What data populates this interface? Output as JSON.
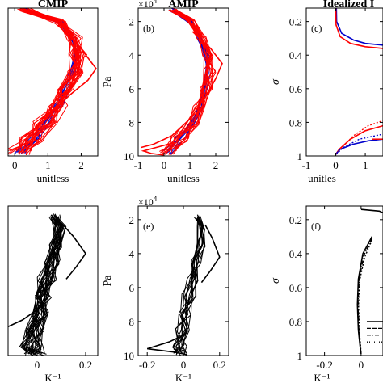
{
  "chart_data": [
    {
      "type": "line",
      "title": "CMIP",
      "panel_label": "",
      "xlabel": "unitless",
      "ylabel": "",
      "xlim": [
        -0.2,
        2.5
      ],
      "ylim": [
        10,
        1.2
      ],
      "y_reversed": true,
      "xticks": [
        0,
        1,
        2
      ],
      "yticks": [],
      "ensembles": [
        {
          "color": "#0000cc",
          "count": 8,
          "seed": 11,
          "profile": {
            "y": [
              1.3,
              2,
              3,
              4,
              5,
              6,
              7,
              8,
              9,
              9.8
            ],
            "x": [
              0.35,
              1.4,
              1.75,
              1.85,
              1.75,
              1.55,
              1.3,
              0.95,
              0.55,
              0.1
            ]
          },
          "jitter": 0.12
        },
        {
          "color": "#ff0000",
          "count": 24,
          "seed": 23,
          "profile": {
            "y": [
              1.3,
              2,
              3,
              4,
              5,
              6,
              7,
              8,
              9,
              9.8
            ],
            "x": [
              0.3,
              1.35,
              1.8,
              1.9,
              1.8,
              1.55,
              1.25,
              0.9,
              0.5,
              0.05
            ]
          },
          "jitter": 0.28
        }
      ],
      "extra_lines": [
        {
          "color": "#ff0000",
          "x": [
            1.3,
            1.95,
            2.45,
            2.2,
            1.7,
            1.1,
            0.5,
            0.05
          ],
          "y": [
            2.2,
            3.5,
            4.8,
            5.5,
            6.3,
            7.4,
            8.6,
            9.7
          ]
        }
      ]
    },
    {
      "type": "line",
      "title": "AMIP",
      "panel_label": "(b)",
      "xlabel": "unitless",
      "ylabel": "Pa",
      "y_exponent": "×10",
      "y_exponent_power": "4",
      "xlim": [
        -1,
        2.5
      ],
      "ylim": [
        10,
        1.2
      ],
      "y_reversed": true,
      "xticks": [
        -1,
        0,
        1,
        2
      ],
      "yticks": [
        2,
        4,
        6,
        8,
        10
      ],
      "ensembles": [
        {
          "color": "#0000cc",
          "count": 8,
          "seed": 31,
          "profile": {
            "y": [
              1.3,
              2,
              3,
              4,
              5,
              6,
              7,
              8,
              9,
              9.8
            ],
            "x": [
              0.3,
              1.0,
              1.4,
              1.6,
              1.7,
              1.6,
              1.45,
              1.1,
              0.6,
              0.1
            ]
          },
          "jitter": 0.12
        },
        {
          "color": "#ff0000",
          "count": 16,
          "seed": 47,
          "profile": {
            "y": [
              1.3,
              2,
              3,
              4,
              5,
              6,
              7,
              8,
              9,
              9.8
            ],
            "x": [
              0.35,
              1.05,
              1.45,
              1.7,
              1.8,
              1.65,
              1.45,
              1.1,
              0.6,
              0.1
            ]
          },
          "jitter": 0.25
        }
      ],
      "extra_lines": [
        {
          "color": "#ff0000",
          "x": [
            1.1,
            1.8,
            2.25,
            2.0,
            1.6,
            1.0,
            0.3,
            -0.4,
            -0.9
          ],
          "y": [
            2.6,
            3.6,
            4.5,
            5.4,
            6.5,
            7.8,
            8.8,
            9.3,
            9.5
          ]
        },
        {
          "color": "#ff0000",
          "x": [
            0.4,
            -0.2,
            -0.8,
            -0.5,
            0.0
          ],
          "y": [
            9.2,
            9.45,
            9.7,
            9.85,
            9.95
          ]
        }
      ]
    },
    {
      "type": "line",
      "title": "Idealized I",
      "panel_label": "(c)",
      "xlabel": "unitles",
      "ylabel": "σ",
      "xlim": [
        -1,
        1.6
      ],
      "ylim": [
        1,
        0.12
      ],
      "y_reversed": true,
      "xticks": [
        -1,
        0,
        1
      ],
      "yticks": [
        0.2,
        0.4,
        0.6,
        0.8,
        1
      ],
      "ensembles": [],
      "extra_lines": [
        {
          "color": "#0000cc",
          "x": [
            0.02,
            0.03,
            0.2,
            0.6,
            1.0,
            1.6
          ],
          "y": [
            0.12,
            0.2,
            0.27,
            0.31,
            0.33,
            0.34
          ]
        },
        {
          "color": "#ff0000",
          "x": [
            0.0,
            0.01,
            0.15,
            0.5,
            1.0,
            1.6
          ],
          "y": [
            0.12,
            0.22,
            0.29,
            0.33,
            0.35,
            0.36
          ]
        },
        {
          "color": "#ff0000",
          "x": [
            0.0,
            0.12,
            0.5,
            1.0,
            1.6
          ],
          "y": [
            0.99,
            0.96,
            0.9,
            0.85,
            0.82
          ]
        },
        {
          "color": "#0000cc",
          "x": [
            0.0,
            0.15,
            0.6,
            1.1,
            1.6
          ],
          "y": [
            0.99,
            0.96,
            0.93,
            0.91,
            0.9
          ]
        },
        {
          "color": "#ff0000",
          "x": [
            0.02,
            0.2,
            0.6,
            1.1,
            1.6
          ],
          "y": [
            0.99,
            0.95,
            0.88,
            0.82,
            0.79
          ],
          "dash": "2,2"
        },
        {
          "color": "#0000cc",
          "x": [
            0.02,
            0.25,
            0.8,
            1.6
          ],
          "y": [
            0.99,
            0.95,
            0.9,
            0.87
          ],
          "dash": "2,2"
        }
      ],
      "legend_fragments": [
        {
          "color": "#ff0000",
          "y": 0.9
        }
      ]
    },
    {
      "type": "line",
      "title": "",
      "panel_label": "",
      "xlabel": "K⁻¹",
      "ylabel": "",
      "xlim": [
        -0.12,
        0.25
      ],
      "ylim": [
        10,
        1.2
      ],
      "y_reversed": true,
      "xticks": [
        0,
        0.2
      ],
      "yticks": [],
      "ensembles": [
        {
          "color": "#000000",
          "count": 28,
          "seed": 59,
          "profile": {
            "y": [
              1.8,
              2.5,
              3.5,
              4.5,
              5.5,
              6.5,
              7.5,
              8.5,
              9.5,
              9.9
            ],
            "x": [
              0.07,
              0.09,
              0.08,
              0.06,
              0.04,
              0.02,
              0.01,
              -0.01,
              -0.02,
              -0.01
            ]
          },
          "jitter": 0.035
        }
      ],
      "extra_lines": [
        {
          "color": "#000000",
          "x": [
            0.05,
            0.0,
            -0.06,
            -0.12
          ],
          "y": [
            6.5,
            7.3,
            7.9,
            8.3
          ]
        },
        {
          "color": "#000000",
          "x": [
            0.1,
            0.15,
            0.2,
            0.16,
            0.12
          ],
          "y": [
            2.2,
            3.0,
            4.0,
            4.8,
            5.5
          ]
        }
      ]
    },
    {
      "type": "line",
      "title": "",
      "panel_label": "(e)",
      "xlabel": "K⁻¹",
      "ylabel": "Pa",
      "y_exponent": "×10",
      "y_exponent_power": "4",
      "xlim": [
        -0.25,
        0.25
      ],
      "ylim": [
        10,
        1.2
      ],
      "y_reversed": true,
      "xticks": [
        -0.2,
        0,
        0.2
      ],
      "yticks": [
        2,
        4,
        6,
        8,
        10
      ],
      "ensembles": [
        {
          "color": "#000000",
          "count": 14,
          "seed": 71,
          "profile": {
            "y": [
              1.8,
              2.5,
              3.5,
              4.5,
              5.5,
              6.5,
              7.5,
              8.5,
              9.5,
              9.9
            ],
            "x": [
              0.08,
              0.1,
              0.09,
              0.07,
              0.05,
              0.03,
              0.01,
              -0.01,
              -0.02,
              -0.01
            ]
          },
          "jitter": 0.035
        }
      ],
      "extra_lines": [
        {
          "color": "#000000",
          "x": [
            0.12,
            0.16,
            0.2,
            0.15,
            0.1
          ],
          "y": [
            2.3,
            3.1,
            4.2,
            5.0,
            5.7
          ]
        },
        {
          "color": "#000000",
          "x": [
            0.0,
            -0.08,
            -0.2,
            -0.05,
            0.02
          ],
          "y": [
            8.8,
            9.2,
            9.6,
            9.8,
            9.95
          ]
        }
      ]
    },
    {
      "type": "line",
      "title": "",
      "panel_label": "(f)",
      "xlabel": "K⁻¹",
      "ylabel": "σ",
      "xlim": [
        -0.3,
        0.12
      ],
      "ylim": [
        1,
        0.12
      ],
      "y_reversed": true,
      "xticks": [
        -0.2,
        0
      ],
      "yticks": [
        0.2,
        0.4,
        0.6,
        0.8,
        1
      ],
      "ensembles": [],
      "extra_lines": [
        {
          "color": "#000000",
          "x": [
            0.0,
            0.1,
            0.12
          ],
          "y": [
            0.14,
            0.15,
            0.16
          ]
        },
        {
          "color": "#000000",
          "x": [
            0.06,
            0.01,
            -0.015,
            -0.02,
            -0.015,
            -0.005,
            0.0
          ],
          "y": [
            0.3,
            0.4,
            0.55,
            0.7,
            0.85,
            0.95,
            0.99
          ]
        },
        {
          "color": "#000000",
          "x": [
            0.06,
            0.02,
            -0.008,
            -0.014,
            -0.01,
            -0.003,
            0.0
          ],
          "y": [
            0.32,
            0.42,
            0.56,
            0.7,
            0.84,
            0.94,
            0.99
          ],
          "dash": "2,2"
        },
        {
          "color": "#000000",
          "x": [
            0.06,
            0.015,
            -0.01,
            -0.017,
            -0.012,
            -0.004,
            0.0
          ],
          "y": [
            0.31,
            0.41,
            0.55,
            0.7,
            0.85,
            0.95,
            0.99
          ],
          "dash": "5,2,1,2"
        }
      ],
      "legend_lines": [
        {
          "dash": "",
          "y": 0.8
        },
        {
          "dash": "5,2",
          "y": 0.84
        },
        {
          "dash": "5,2,1,2",
          "y": 0.88
        },
        {
          "dash": "1,2",
          "y": 0.92
        }
      ]
    }
  ]
}
